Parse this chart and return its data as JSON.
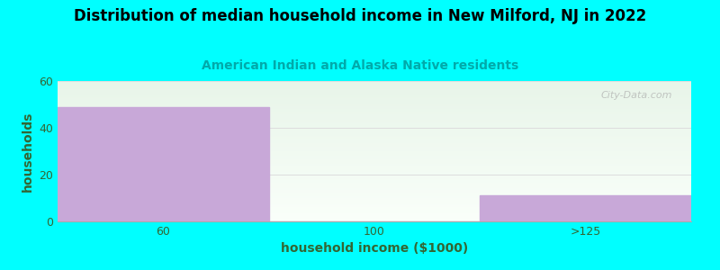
{
  "title": "Distribution of median household income in New Milford, NJ in 2022",
  "subtitle": "American Indian and Alaska Native residents",
  "xlabel": "household income ($1000)",
  "ylabel": "households",
  "background_color": "#00ffff",
  "plot_bg_color_top": "#e8f5e9",
  "plot_bg_color_bottom": "#f8fff8",
  "bar_color": "#c8a8d8",
  "bar_edge_color": "#c8a8d8",
  "categories": [
    "60",
    "100",
    ">125"
  ],
  "values": [
    49,
    0,
    11
  ],
  "ylim": [
    0,
    60
  ],
  "yticks": [
    0,
    20,
    40,
    60
  ],
  "title_fontsize": 12,
  "subtitle_fontsize": 10,
  "subtitle_color": "#00aaaa",
  "axis_label_color": "#336633",
  "tick_label_color": "#336633",
  "watermark_text": "City-Data.com",
  "grid_color": "#dddddd"
}
